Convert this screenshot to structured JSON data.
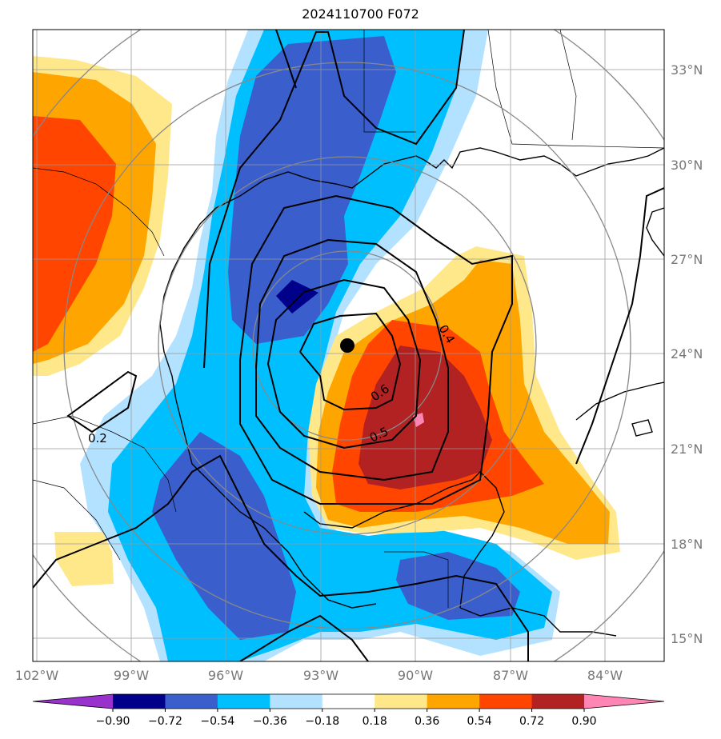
{
  "title": "2024110700 F072",
  "lat_labels": [
    "33°N",
    "30°N",
    "27°N",
    "24°N",
    "21°N",
    "18°N",
    "15°N"
  ],
  "lon_labels": [
    "102°W",
    "99°W",
    "96°W",
    "93°W",
    "90°W",
    "87°W",
    "84°W"
  ],
  "contour_labels": [
    "0.4",
    "0.6",
    "0.5",
    "0.2"
  ],
  "colorbar": {
    "ticks": [
      "−0.90",
      "−0.72",
      "−0.54",
      "−0.36",
      "−0.18",
      "0.18",
      "0.36",
      "0.54",
      "0.72",
      "0.90"
    ],
    "colors": [
      "#9932CC",
      "#00008B",
      "#3A5FCD",
      "#00BFFF",
      "#B2E2FF",
      "#FFFFFF",
      "#FFE88A",
      "#FFA500",
      "#FF4500",
      "#B22222",
      "#FF85B4"
    ]
  },
  "storm_center": "black-dot"
}
